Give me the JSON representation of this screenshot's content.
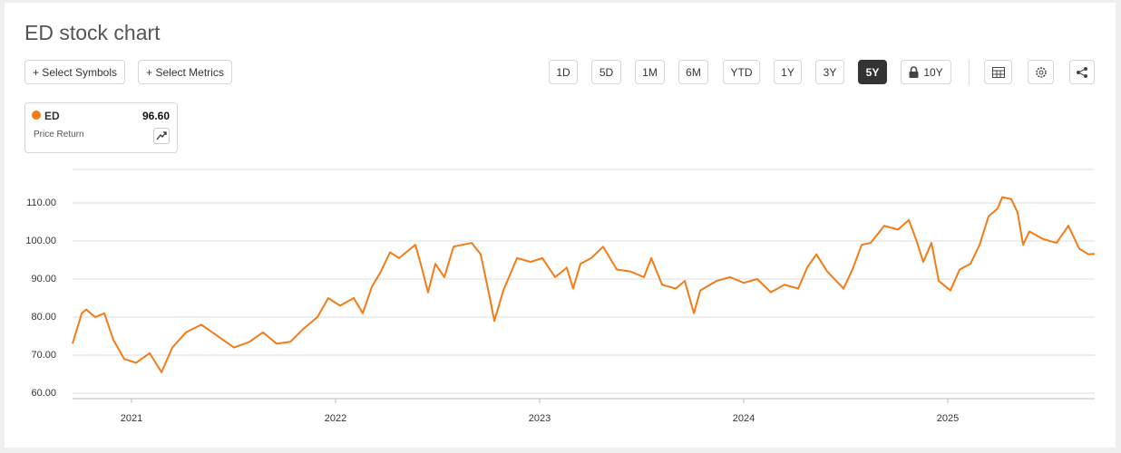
{
  "header": {
    "title": "ED stock chart"
  },
  "toolbar": {
    "actions": [
      "+ Select Symbols",
      "+ Select Metrics"
    ],
    "ranges": [
      {
        "label": "1D"
      },
      {
        "label": "5D"
      },
      {
        "label": "1M"
      },
      {
        "label": "6M"
      },
      {
        "label": "YTD"
      },
      {
        "label": "1Y"
      },
      {
        "label": "3Y"
      },
      {
        "label": "5Y",
        "selected": true
      },
      {
        "label": "10Y",
        "locked": true
      }
    ]
  },
  "legend": {
    "value": "96.60",
    "label": "Price Return"
  },
  "chart_data": {
    "type": "line",
    "x": [
      2020.711,
      2020.756,
      2020.778,
      2020.822,
      2020.867,
      2020.911,
      2020.964,
      2021.022,
      2021.089,
      2021.147,
      2021.2,
      2021.267,
      2021.342,
      2021.422,
      2021.502,
      2021.578,
      2021.644,
      2021.711,
      2021.778,
      2021.844,
      2021.911,
      2021.964,
      2022.022,
      2022.089,
      2022.133,
      2022.178,
      2022.222,
      2022.267,
      2022.311,
      2022.391,
      2022.422,
      2022.453,
      2022.489,
      2022.533,
      2022.578,
      2022.622,
      2022.667,
      2022.711,
      2022.756,
      2022.778,
      2022.822,
      2022.889,
      2022.956,
      2023.013,
      2023.076,
      2023.133,
      2023.164,
      2023.2,
      2023.253,
      2023.311,
      2023.378,
      2023.444,
      2023.511,
      2023.547,
      2023.6,
      2023.667,
      2023.711,
      2023.756,
      2023.787,
      2023.867,
      2023.933,
      2024.0,
      2024.067,
      2024.133,
      2024.2,
      2024.267,
      2024.311,
      2024.356,
      2024.409,
      2024.489,
      2024.533,
      2024.578,
      2024.622,
      2024.689,
      2024.756,
      2024.809,
      2024.844,
      2024.88,
      2024.92,
      2024.956,
      2025.013,
      2025.058,
      2025.111,
      2025.156,
      2025.2,
      2025.244,
      2025.267,
      2025.311,
      2025.342,
      2025.369,
      2025.4,
      2025.467,
      2025.533,
      2025.591,
      2025.644,
      2025.689,
      2025.72
    ],
    "series": [
      {
        "name": "ED",
        "color": "#f47b16",
        "values": [
          73,
          81,
          82,
          80,
          81,
          74,
          69,
          68,
          70.5,
          65.5,
          72,
          76,
          78,
          75,
          72,
          73.5,
          76,
          73,
          73.5,
          77,
          80,
          85,
          83,
          85,
          81,
          88,
          92,
          97,
          95.5,
          99,
          93,
          86.5,
          94,
          90.5,
          98.5,
          99,
          99.5,
          96.5,
          85,
          79,
          87,
          95.5,
          94.5,
          95.5,
          90.5,
          93,
          87.5,
          94,
          95.5,
          98.5,
          92.5,
          92,
          90.5,
          95.5,
          88.5,
          87.5,
          89.5,
          81,
          87,
          89.5,
          90.5,
          89,
          90,
          86.5,
          88.5,
          87.5,
          93,
          96.5,
          92,
          87.5,
          92.5,
          99,
          99.5,
          104,
          103,
          105.5,
          100.5,
          94.5,
          99.5,
          89.5,
          87,
          92.5,
          94,
          99,
          106.5,
          108.5,
          111.5,
          111,
          107.5,
          99,
          102.5,
          100.5,
          99.5,
          104,
          98,
          96.5,
          96.6
        ]
      }
    ],
    "xlim": [
      2020.711,
      2025.72
    ],
    "xticks": [
      2021,
      2022,
      2023,
      2024,
      2025
    ],
    "ylim": [
      58.57,
      118.8
    ],
    "yticks": [
      {
        "value": 60,
        "label": "60.00"
      },
      {
        "value": 70,
        "label": "70.00"
      },
      {
        "value": 80,
        "label": "80.00"
      },
      {
        "value": 90,
        "label": "90.00"
      },
      {
        "value": 100,
        "label": "100.00"
      },
      {
        "value": 110,
        "label": "110.00"
      }
    ],
    "grid": true
  }
}
